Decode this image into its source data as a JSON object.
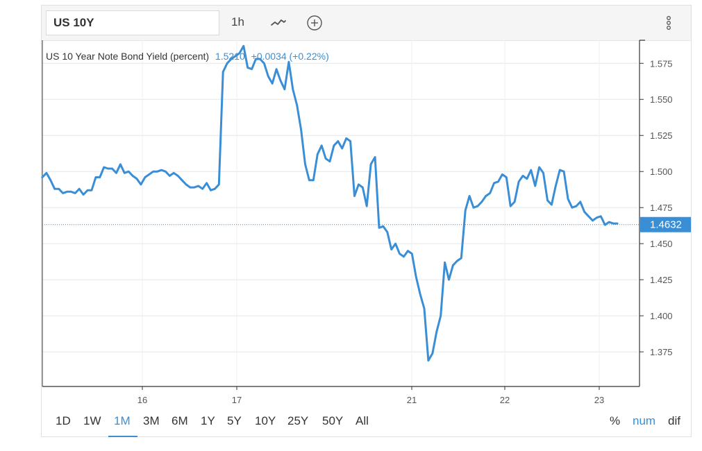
{
  "toolbar": {
    "symbol": "US 10Y",
    "interval": "1h",
    "chart_style_icon": "line-chart-icon",
    "add_icon": "plus-circle-icon",
    "menu_icon": "more-vertical-icon"
  },
  "legend": {
    "title": "US 10 Year Note Bond Yield (percent)",
    "value": "1.5210",
    "change": "+0.0034 (+0.22%)"
  },
  "last_price": "1.4632",
  "range_buttons": [
    "1D",
    "1W",
    "1M",
    "3M",
    "6M",
    "1Y",
    "5Y",
    "10Y",
    "25Y",
    "50Y",
    "All"
  ],
  "active_range": "1M",
  "modes": [
    "%",
    "num",
    "dif"
  ],
  "active_mode": "num",
  "colors": {
    "line": "#3a8ed6",
    "accent": "#3a8ed6",
    "grid": "#e6e6e6",
    "text": "#333333"
  },
  "chart_data": {
    "type": "line",
    "title": "US 10 Year Note Bond Yield (percent)",
    "xlabel": "",
    "ylabel": "",
    "x_ticks": [
      "16",
      "17",
      "21",
      "22",
      "23"
    ],
    "y_ticks": [
      1.375,
      1.4,
      1.425,
      1.45,
      1.475,
      1.5,
      1.525,
      1.55,
      1.575
    ],
    "y_tick_labels": [
      "1.375",
      "1.400",
      "1.425",
      "1.450",
      "1.475",
      "1.500",
      "1.525",
      "1.550",
      "1.575"
    ],
    "ylim": [
      1.351,
      1.591
    ],
    "last_value": 1.4632,
    "grid": true,
    "series": [
      {
        "values": [
          1.496,
          1.499,
          1.494,
          1.488,
          1.488,
          1.485,
          1.486,
          1.486,
          1.485,
          1.488,
          1.484,
          1.487,
          1.487,
          1.496,
          1.496,
          1.503,
          1.502,
          1.502,
          1.499,
          1.505,
          1.499,
          1.5,
          1.497,
          1.495,
          1.491,
          1.496,
          1.498,
          1.5,
          1.5,
          1.501,
          1.5,
          1.497,
          1.499,
          1.497,
          1.494,
          1.491,
          1.489,
          1.489,
          1.49,
          1.488,
          1.492,
          1.487,
          1.488,
          1.491,
          1.569,
          1.575,
          1.578,
          1.58,
          1.582,
          1.587,
          1.572,
          1.571,
          1.578,
          1.578,
          1.575,
          1.566,
          1.561,
          1.571,
          1.563,
          1.557,
          1.576,
          1.557,
          1.546,
          1.529,
          1.505,
          1.494,
          1.494,
          1.512,
          1.518,
          1.509,
          1.507,
          1.518,
          1.521,
          1.516,
          1.523,
          1.521,
          1.483,
          1.491,
          1.489,
          1.476,
          1.505,
          1.51,
          1.461,
          1.462,
          1.458,
          1.446,
          1.45,
          1.443,
          1.441,
          1.445,
          1.443,
          1.427,
          1.415,
          1.405,
          1.369,
          1.374,
          1.389,
          1.4,
          1.437,
          1.425,
          1.435,
          1.438,
          1.44,
          1.473,
          1.483,
          1.475,
          1.476,
          1.479,
          1.483,
          1.485,
          1.492,
          1.493,
          1.498,
          1.496,
          1.476,
          1.479,
          1.493,
          1.497,
          1.495,
          1.501,
          1.49,
          1.503,
          1.499,
          1.48,
          1.477,
          1.49,
          1.501,
          1.5,
          1.481,
          1.475,
          1.476,
          1.479,
          1.472,
          1.469,
          1.466,
          1.468,
          1.469,
          1.463,
          1.465,
          1.464,
          1.464
        ]
      }
    ]
  }
}
